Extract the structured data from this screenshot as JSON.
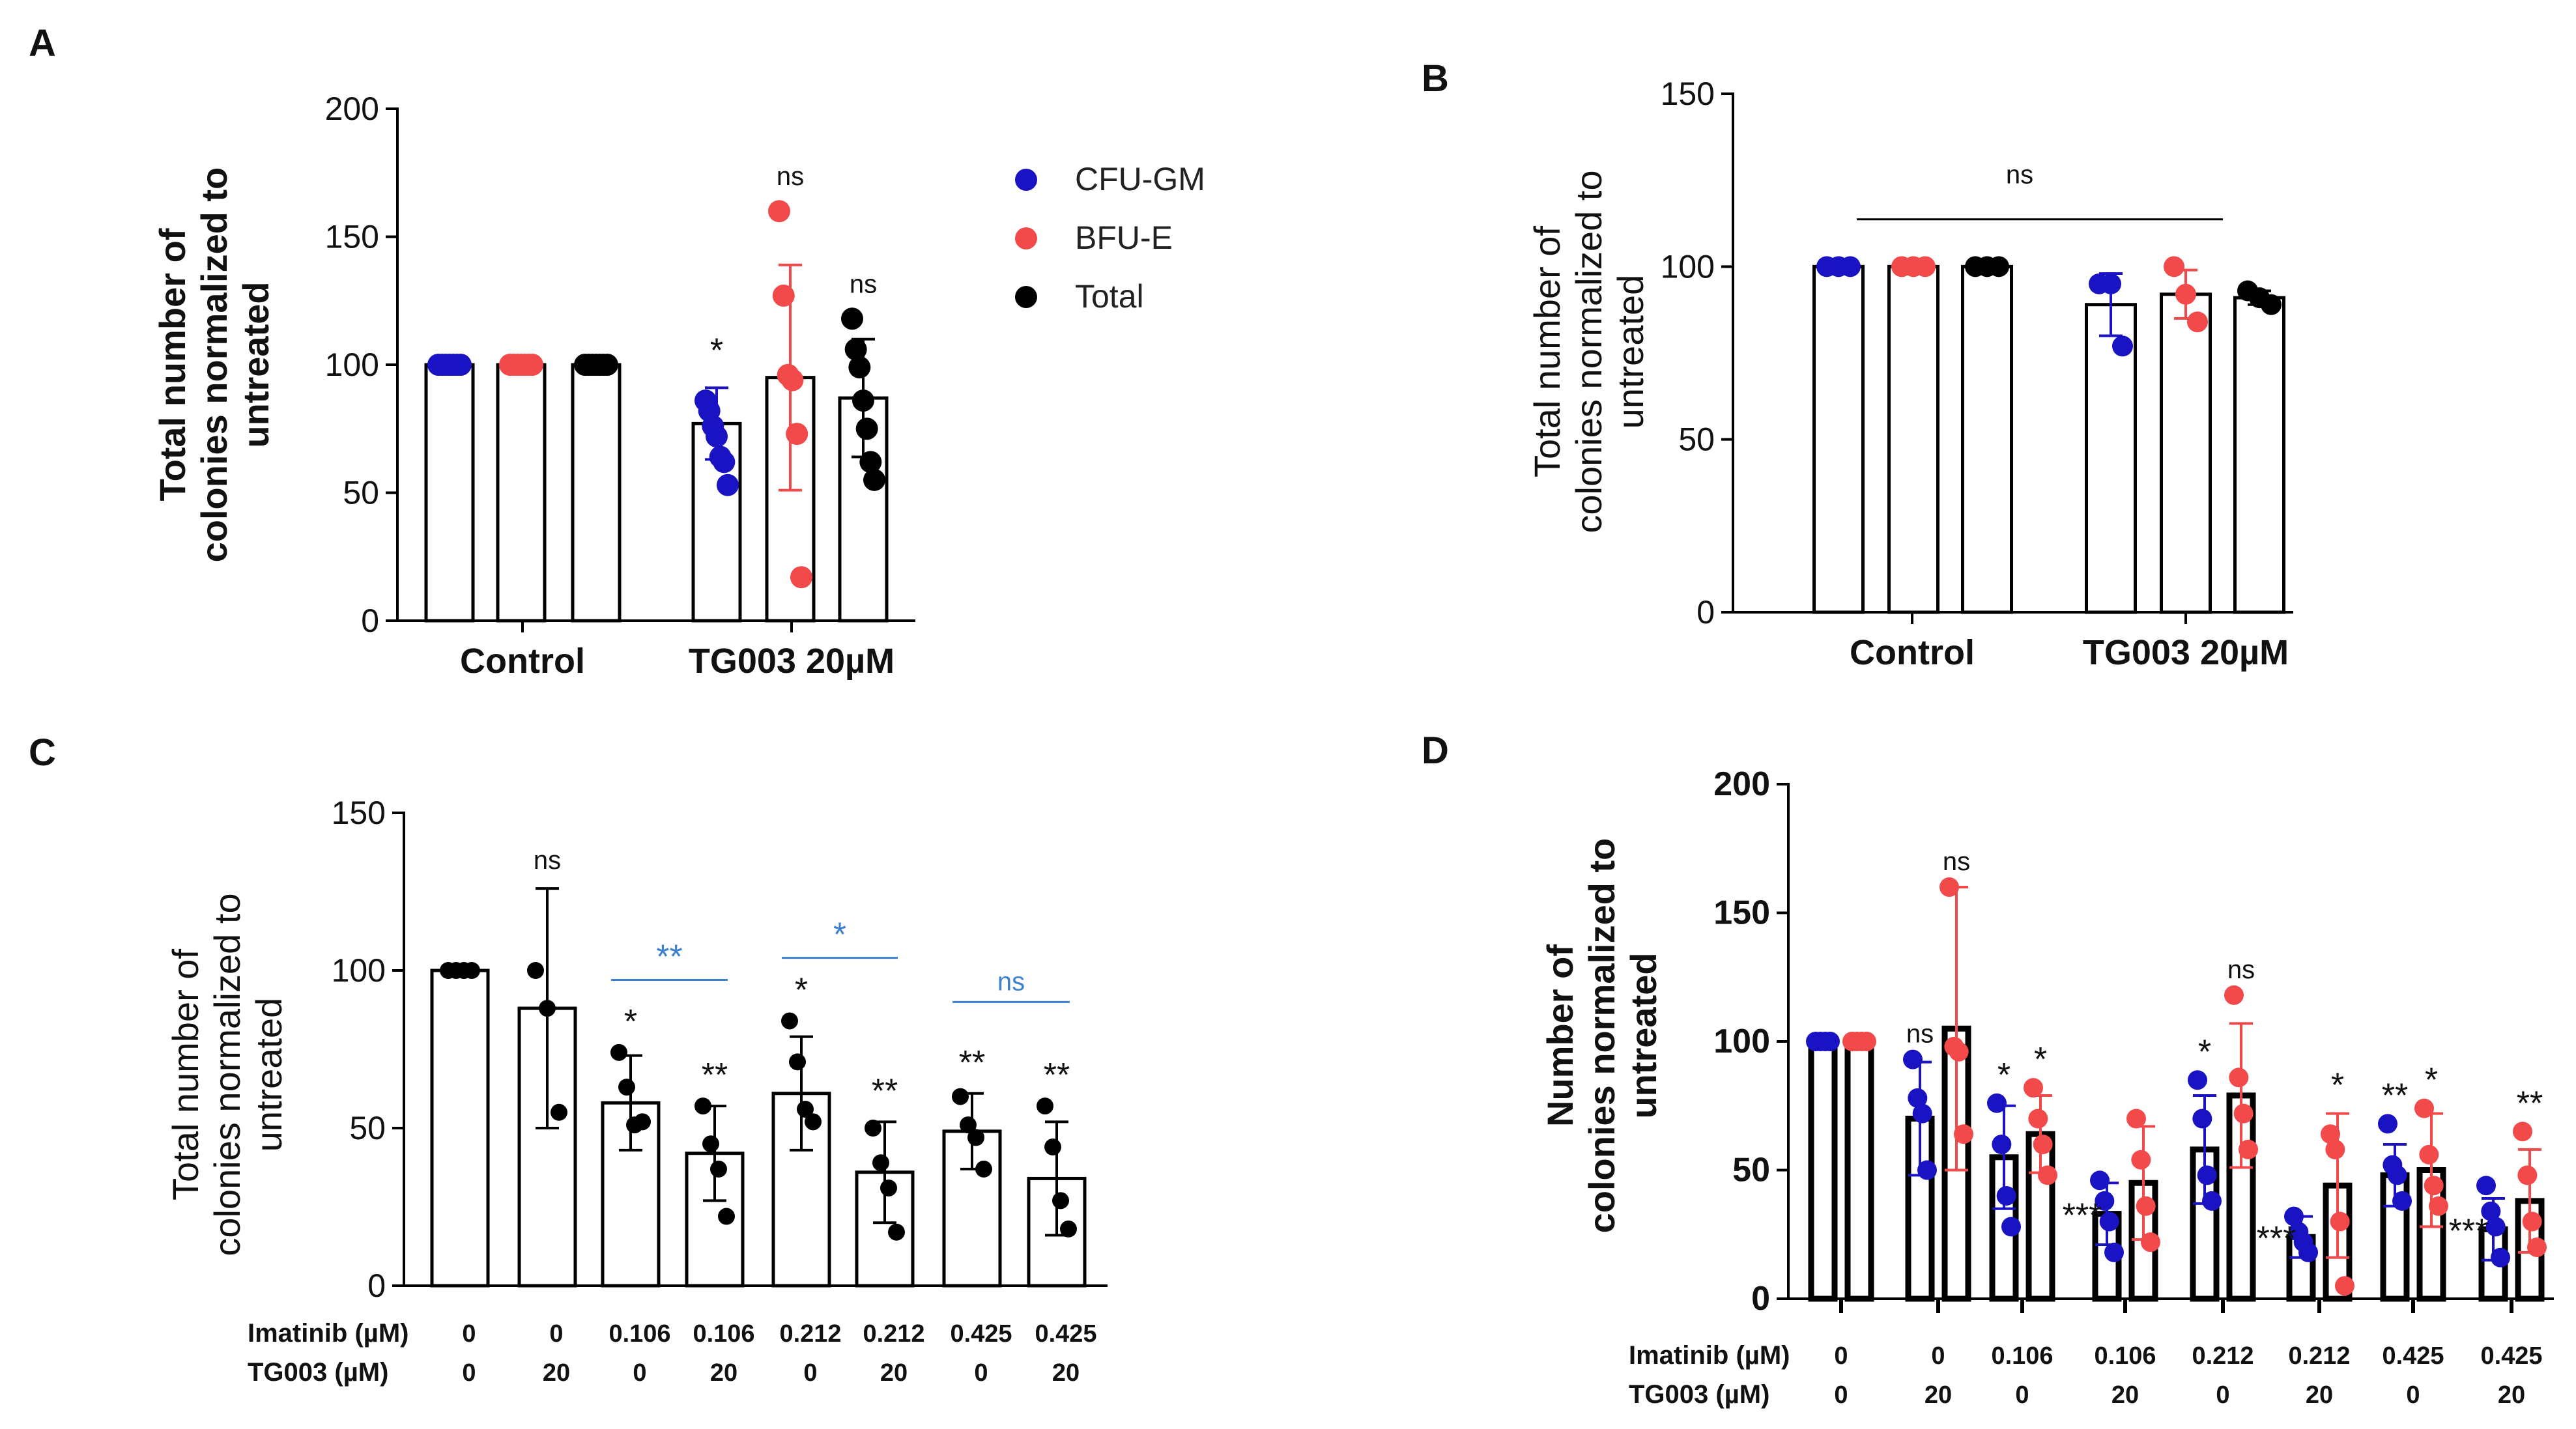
{
  "panel_labels": [
    "A",
    "B",
    "C",
    "D"
  ],
  "chart_data": [
    {
      "id": "A",
      "type": "bar",
      "ylabel": [
        "Total number of",
        "colonies normalized to",
        "untreated"
      ],
      "ylim": [
        0,
        200
      ],
      "yticks": [
        0,
        50,
        100,
        150,
        200
      ],
      "groups": [
        "Control",
        "TG003 20µM"
      ],
      "legend": [
        {
          "name": "CFU-GM",
          "color": "#1a13c4"
        },
        {
          "name": "BFU-E",
          "color": "#f24a4a"
        },
        {
          "name": "Total",
          "color": "#000000"
        }
      ],
      "bars": [
        {
          "group": 0,
          "series": "CFU-GM",
          "value": 100,
          "sd": 0,
          "points": [
            100,
            100,
            100,
            100,
            100,
            100,
            100
          ],
          "sig": ""
        },
        {
          "group": 0,
          "series": "BFU-E",
          "value": 100,
          "sd": 0,
          "points": [
            100,
            100,
            100,
            100,
            100,
            100,
            100
          ],
          "sig": ""
        },
        {
          "group": 0,
          "series": "Total",
          "value": 100,
          "sd": 0,
          "points": [
            100,
            100,
            100,
            100,
            100,
            100,
            100
          ],
          "sig": ""
        },
        {
          "group": 1,
          "series": "CFU-GM",
          "value": 77,
          "sd": 14,
          "points": [
            86,
            82,
            76,
            72,
            64,
            62,
            53
          ],
          "sig": "*"
        },
        {
          "group": 1,
          "series": "BFU-E",
          "value": 95,
          "sd": 44,
          "points": [
            160,
            127,
            96,
            94,
            73,
            17
          ],
          "sig": "ns"
        },
        {
          "group": 1,
          "series": "Total",
          "value": 87,
          "sd": 23,
          "points": [
            118,
            106,
            99,
            86,
            75,
            62,
            55
          ],
          "sig": "ns"
        }
      ]
    },
    {
      "id": "B",
      "type": "bar",
      "ylabel": [
        "Total number of",
        "colonies normalized to",
        "untreated"
      ],
      "ylim": [
        0,
        150
      ],
      "yticks": [
        0,
        50,
        100,
        150
      ],
      "groups": [
        "Control",
        "TG003 20µM"
      ],
      "bars": [
        {
          "group": 0,
          "series": "CFU-GM",
          "value": 100,
          "sd": 0,
          "points": [
            100,
            100,
            100
          ],
          "sig": ""
        },
        {
          "group": 0,
          "series": "BFU-E",
          "value": 100,
          "sd": 0,
          "points": [
            100,
            100,
            100
          ],
          "sig": ""
        },
        {
          "group": 0,
          "series": "Total",
          "value": 100,
          "sd": 0,
          "points": [
            100,
            100,
            100
          ],
          "sig": ""
        },
        {
          "group": 1,
          "series": "CFU-GM",
          "value": 89,
          "sd": 9,
          "points": [
            95,
            95,
            77
          ],
          "sig": ""
        },
        {
          "group": 1,
          "series": "BFU-E",
          "value": 92,
          "sd": 7,
          "points": [
            100,
            92,
            84
          ],
          "sig": ""
        },
        {
          "group": 1,
          "series": "Total",
          "value": 91,
          "sd": 2,
          "points": [
            93,
            91,
            89
          ],
          "sig": ""
        }
      ],
      "bracket": {
        "from_bar": 0,
        "to_bar": 4,
        "y": 115,
        "label": "ns"
      }
    },
    {
      "id": "C",
      "type": "bar",
      "ylabel": [
        "Total number of",
        "colonies normalized to",
        "untreated"
      ],
      "ylim": [
        0,
        150
      ],
      "yticks": [
        0,
        50,
        100,
        150
      ],
      "row_labels": [
        "Imatinib (µM)",
        "TG003 (µM)"
      ],
      "imatinib": [
        "0",
        "0",
        "0.106",
        "0.106",
        "0.212",
        "0.212",
        "0.425",
        "0.425"
      ],
      "tg003": [
        "0",
        "20",
        "0",
        "20",
        "0",
        "20",
        "0",
        "20"
      ],
      "bars": [
        {
          "value": 100,
          "sd": 0,
          "points": [
            100,
            100,
            100,
            100
          ],
          "sig": ""
        },
        {
          "value": 88,
          "sd": 38,
          "points": [
            100,
            88,
            55
          ],
          "sig": "ns"
        },
        {
          "value": 58,
          "sd": 15,
          "points": [
            74,
            63,
            51,
            52
          ],
          "sig": "*"
        },
        {
          "value": 42,
          "sd": 15,
          "points": [
            57,
            45,
            37,
            22
          ],
          "sig": "**"
        },
        {
          "value": 61,
          "sd": 18,
          "points": [
            84,
            71,
            56,
            52
          ],
          "sig": "*"
        },
        {
          "value": 36,
          "sd": 16,
          "points": [
            50,
            39,
            31,
            17
          ],
          "sig": "**"
        },
        {
          "value": 49,
          "sd": 12,
          "points": [
            60,
            51,
            47,
            37
          ],
          "sig": "**"
        },
        {
          "value": 34,
          "sd": 18,
          "points": [
            57,
            44,
            27,
            18
          ],
          "sig": "**"
        }
      ],
      "brackets": [
        {
          "from_bar": 2,
          "to_bar": 3,
          "y": 97,
          "label": "**",
          "color": "#3d7fd1"
        },
        {
          "from_bar": 4,
          "to_bar": 5,
          "y": 104,
          "label": "*",
          "color": "#3d7fd1"
        },
        {
          "from_bar": 6,
          "to_bar": 7,
          "y": 90,
          "label": "ns",
          "color": "#3d7fd1"
        }
      ]
    },
    {
      "id": "D",
      "type": "bar",
      "ylabel": [
        "Number of",
        "colonies normalized to",
        "untreated"
      ],
      "ylim": [
        0,
        200
      ],
      "yticks": [
        0,
        50,
        100,
        150,
        200
      ],
      "row_labels": [
        "Imatinib (µM)",
        "TG003 (µM)"
      ],
      "imatinib": [
        "0",
        "0",
        "0.106",
        "0.106",
        "0.212",
        "0.212",
        "0.425",
        "0.425"
      ],
      "tg003": [
        "0",
        "20",
        "0",
        "20",
        "0",
        "20",
        "0",
        "20"
      ],
      "series": [
        {
          "name": "CFU-GM",
          "color": "#1a13c4",
          "values": [
            100,
            70,
            55,
            33,
            58,
            24,
            48,
            27
          ],
          "sd": [
            0,
            22,
            20,
            12,
            21,
            8,
            12,
            12
          ],
          "points": [
            [
              100,
              100,
              100,
              100
            ],
            [
              93,
              78,
              72,
              50
            ],
            [
              76,
              60,
              40,
              28
            ],
            [
              46,
              38,
              30,
              18
            ],
            [
              85,
              70,
              48,
              38
            ],
            [
              32,
              26,
              22,
              18
            ],
            [
              68,
              52,
              48,
              38
            ],
            [
              44,
              34,
              28,
              16
            ]
          ],
          "sig": [
            "",
            "ns",
            "*",
            "***",
            "*",
            "***",
            "**",
            "***"
          ]
        },
        {
          "name": "BFU-E",
          "color": "#f24a4a",
          "values": [
            100,
            105,
            64,
            45,
            79,
            44,
            50,
            38
          ],
          "sd": [
            0,
            55,
            15,
            22,
            28,
            28,
            22,
            20
          ],
          "points": [
            [
              100,
              100,
              100,
              100
            ],
            [
              160,
              98,
              96,
              64
            ],
            [
              82,
              70,
              60,
              48
            ],
            [
              70,
              54,
              36,
              22
            ],
            [
              118,
              86,
              72,
              58
            ],
            [
              64,
              58,
              30,
              5
            ],
            [
              74,
              56,
              44,
              36
            ],
            [
              65,
              48,
              30,
              20
            ]
          ],
          "sig": [
            "",
            "ns",
            "*",
            "",
            "ns",
            "*",
            "*",
            "**"
          ]
        }
      ]
    }
  ]
}
